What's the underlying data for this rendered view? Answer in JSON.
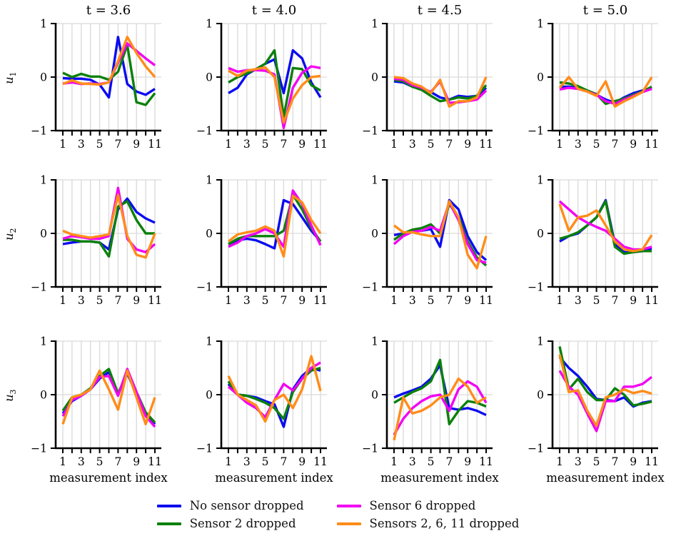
{
  "figure_colors": {
    "grid": "#d9d9d9",
    "spine": "#000000",
    "background": "#ffffff"
  },
  "legend": {
    "items": [
      {
        "label": "No sensor dropped",
        "color": "#0b0bf0"
      },
      {
        "label": "Sensor 2 dropped",
        "color": "#0b800b"
      },
      {
        "label": "Sensor 6 dropped",
        "color": "#f202f2"
      },
      {
        "label": "Sensors 2, 6, 11 dropped",
        "color": "#ff8c19"
      }
    ]
  },
  "chart_data": {
    "type": "line",
    "x": [
      1,
      2,
      3,
      4,
      5,
      6,
      7,
      8,
      9,
      10,
      11
    ],
    "xticks": [
      1,
      3,
      5,
      7,
      9,
      11
    ],
    "yticks": [
      1,
      0,
      -1
    ],
    "ylim": [
      -1,
      1
    ],
    "grid": true,
    "xlabel": "measurement index",
    "columns": [
      "t = 3.6",
      "t = 4.0",
      "t = 4.5",
      "t = 5.0"
    ],
    "rows": [
      {
        "label": "u",
        "sub": "1"
      },
      {
        "label": "u",
        "sub": "2"
      },
      {
        "label": "u",
        "sub": "3"
      }
    ],
    "series_meta": [
      {
        "name": "No sensor dropped",
        "color": "#0b0bf0"
      },
      {
        "name": "Sensor 2 dropped",
        "color": "#0b800b"
      },
      {
        "name": "Sensor 6 dropped",
        "color": "#f202f2"
      },
      {
        "name": "Sensors 2, 6, 11 dropped",
        "color": "#ff8c19"
      }
    ],
    "subplots": [
      {
        "row": "u1",
        "col": "t = 3.6",
        "values": [
          [
            -0.02,
            -0.03,
            -0.03,
            -0.05,
            -0.14,
            -0.38,
            0.75,
            -0.13,
            -0.27,
            -0.33,
            -0.22
          ],
          [
            0.08,
            0.0,
            0.06,
            0.01,
            0.01,
            -0.05,
            0.1,
            0.6,
            -0.47,
            -0.52,
            -0.3
          ],
          [
            -0.12,
            -0.1,
            -0.13,
            -0.12,
            -0.13,
            -0.1,
            0.27,
            0.63,
            0.49,
            0.35,
            0.22
          ],
          [
            -0.13,
            -0.06,
            -0.12,
            -0.13,
            -0.14,
            -0.1,
            0.3,
            0.75,
            0.45,
            0.2,
            0.0
          ]
        ]
      },
      {
        "row": "u1",
        "col": "t = 4.0",
        "values": [
          [
            -0.3,
            -0.2,
            0.05,
            0.15,
            0.25,
            0.33,
            -0.3,
            0.5,
            0.35,
            -0.1,
            -0.38
          ],
          [
            -0.1,
            0.0,
            0.07,
            0.15,
            0.25,
            0.5,
            -0.75,
            0.17,
            0.15,
            -0.15,
            -0.25
          ],
          [
            0.17,
            0.1,
            0.13,
            0.13,
            0.12,
            0.05,
            -0.95,
            -0.2,
            0.08,
            0.2,
            0.17
          ],
          [
            0.12,
            0.02,
            0.12,
            0.15,
            0.18,
            0.0,
            -0.85,
            -0.4,
            -0.15,
            0.0,
            0.02
          ]
        ]
      },
      {
        "row": "u1",
        "col": "t = 4.5",
        "values": [
          [
            -0.08,
            -0.1,
            -0.18,
            -0.22,
            -0.28,
            -0.38,
            -0.42,
            -0.35,
            -0.37,
            -0.35,
            -0.2
          ],
          [
            -0.05,
            -0.08,
            -0.18,
            -0.24,
            -0.35,
            -0.45,
            -0.42,
            -0.38,
            -0.4,
            -0.35,
            -0.15
          ],
          [
            -0.03,
            -0.05,
            -0.15,
            -0.2,
            -0.28,
            -0.08,
            -0.48,
            -0.47,
            -0.45,
            -0.42,
            -0.25
          ],
          [
            0.0,
            -0.02,
            -0.12,
            -0.18,
            -0.3,
            -0.05,
            -0.55,
            -0.45,
            -0.45,
            -0.38,
            0.0
          ]
        ]
      },
      {
        "row": "u1",
        "col": "t = 5.0",
        "values": [
          [
            -0.18,
            -0.18,
            -0.2,
            -0.25,
            -0.33,
            -0.42,
            -0.48,
            -0.38,
            -0.3,
            -0.25,
            -0.2
          ],
          [
            -0.1,
            -0.12,
            -0.17,
            -0.25,
            -0.32,
            -0.5,
            -0.45,
            -0.4,
            -0.33,
            -0.27,
            -0.18
          ],
          [
            -0.23,
            -0.2,
            -0.22,
            -0.27,
            -0.33,
            -0.45,
            -0.5,
            -0.42,
            -0.35,
            -0.28,
            -0.22
          ],
          [
            -0.2,
            0.0,
            -0.22,
            -0.27,
            -0.35,
            -0.08,
            -0.55,
            -0.45,
            -0.37,
            -0.28,
            0.0
          ]
        ]
      },
      {
        "row": "u2",
        "col": "t = 3.6",
        "values": [
          [
            -0.2,
            -0.17,
            -0.15,
            -0.15,
            -0.17,
            -0.3,
            0.45,
            0.65,
            0.4,
            0.28,
            0.2
          ],
          [
            -0.12,
            -0.12,
            -0.15,
            -0.15,
            -0.17,
            -0.43,
            0.5,
            0.6,
            0.25,
            0.0,
            0.0
          ],
          [
            -0.1,
            -0.05,
            -0.07,
            -0.1,
            -0.1,
            -0.05,
            0.85,
            -0.1,
            -0.3,
            -0.35,
            -0.2
          ],
          [
            0.05,
            -0.02,
            -0.05,
            -0.08,
            -0.05,
            -0.02,
            0.72,
            -0.05,
            -0.4,
            -0.45,
            0.0
          ]
        ]
      },
      {
        "row": "u2",
        "col": "t = 4.0",
        "values": [
          [
            -0.2,
            -0.13,
            -0.1,
            -0.13,
            -0.2,
            -0.28,
            0.62,
            0.55,
            0.3,
            0.05,
            -0.15
          ],
          [
            -0.2,
            -0.1,
            -0.05,
            -0.05,
            -0.05,
            -0.05,
            0.05,
            0.72,
            0.45,
            0.1,
            -0.15
          ],
          [
            -0.25,
            -0.17,
            -0.05,
            0.0,
            0.08,
            0.0,
            -0.25,
            0.8,
            0.55,
            0.15,
            -0.22
          ],
          [
            -0.15,
            -0.02,
            0.02,
            0.05,
            0.13,
            0.05,
            -0.43,
            0.7,
            0.58,
            0.25,
            0.0
          ]
        ]
      },
      {
        "row": "u2",
        "col": "t = 4.5",
        "values": [
          [
            -0.03,
            0.0,
            0.05,
            0.05,
            0.08,
            -0.25,
            0.62,
            0.45,
            -0.05,
            -0.35,
            -0.5
          ],
          [
            -0.12,
            0.0,
            0.07,
            0.1,
            0.17,
            0.0,
            0.55,
            0.3,
            -0.15,
            -0.45,
            -0.6
          ],
          [
            -0.2,
            -0.05,
            0.03,
            0.05,
            0.12,
            0.05,
            0.58,
            0.25,
            -0.2,
            -0.5,
            -0.55
          ],
          [
            0.15,
            0.02,
            0.02,
            -0.02,
            -0.05,
            -0.05,
            0.6,
            0.3,
            -0.4,
            -0.65,
            -0.05
          ]
        ]
      },
      {
        "row": "u2",
        "col": "t = 5.0",
        "values": [
          [
            -0.15,
            -0.05,
            0.0,
            0.15,
            0.3,
            0.62,
            -0.2,
            -0.35,
            -0.35,
            -0.33,
            -0.28
          ],
          [
            -0.1,
            -0.05,
            0.02,
            0.15,
            0.3,
            0.6,
            -0.25,
            -0.38,
            -0.35,
            -0.33,
            -0.33
          ],
          [
            0.6,
            0.45,
            0.3,
            0.2,
            0.12,
            0.05,
            -0.1,
            -0.25,
            -0.3,
            -0.3,
            -0.25
          ],
          [
            0.55,
            0.05,
            0.3,
            0.33,
            0.43,
            0.15,
            -0.15,
            -0.3,
            -0.33,
            -0.3,
            -0.03
          ]
        ]
      },
      {
        "row": "u3",
        "col": "t = 3.6",
        "values": [
          [
            -0.35,
            -0.12,
            -0.02,
            0.1,
            0.3,
            0.42,
            0.0,
            0.4,
            0.0,
            -0.35,
            -0.55
          ],
          [
            -0.3,
            -0.05,
            0.0,
            0.12,
            0.35,
            0.48,
            0.02,
            0.42,
            0.05,
            -0.33,
            -0.52
          ],
          [
            -0.4,
            -0.1,
            -0.02,
            0.1,
            0.33,
            0.35,
            -0.02,
            0.48,
            0.05,
            -0.4,
            -0.6
          ],
          [
            -0.55,
            -0.05,
            0.0,
            0.1,
            0.45,
            0.1,
            -0.28,
            0.45,
            -0.05,
            -0.55,
            -0.05
          ]
        ]
      },
      {
        "row": "u3",
        "col": "t = 4.0",
        "values": [
          [
            0.2,
            0.0,
            -0.02,
            -0.05,
            -0.12,
            -0.18,
            -0.6,
            0.1,
            0.35,
            0.5,
            0.45
          ],
          [
            0.25,
            0.0,
            -0.02,
            -0.08,
            -0.15,
            -0.25,
            -0.45,
            0.05,
            0.3,
            0.45,
            0.5
          ],
          [
            0.15,
            0.0,
            -0.15,
            -0.25,
            -0.42,
            -0.1,
            0.2,
            0.08,
            0.3,
            0.5,
            0.6
          ],
          [
            0.35,
            0.0,
            -0.1,
            -0.2,
            -0.5,
            -0.1,
            0.0,
            -0.25,
            0.1,
            0.72,
            0.07
          ]
        ]
      },
      {
        "row": "u3",
        "col": "t = 4.5",
        "values": [
          [
            -0.05,
            0.02,
            0.08,
            0.15,
            0.3,
            0.55,
            -0.25,
            -0.28,
            -0.25,
            -0.3,
            -0.38
          ],
          [
            -0.15,
            -0.05,
            0.05,
            0.12,
            0.25,
            0.65,
            -0.55,
            -0.3,
            -0.12,
            -0.15,
            -0.22
          ],
          [
            -0.75,
            -0.45,
            -0.25,
            -0.12,
            -0.03,
            0.0,
            -0.3,
            0.1,
            0.25,
            0.15,
            -0.15
          ],
          [
            -0.85,
            -0.05,
            -0.35,
            -0.3,
            -0.2,
            -0.05,
            0.0,
            0.3,
            0.15,
            -0.15,
            -0.05
          ]
        ]
      },
      {
        "row": "u3",
        "col": "t = 5.0",
        "values": [
          [
            0.7,
            0.5,
            0.35,
            0.15,
            -0.08,
            -0.1,
            -0.12,
            -0.05,
            -0.22,
            -0.15,
            -0.12
          ],
          [
            0.9,
            0.1,
            0.3,
            0.05,
            -0.1,
            -0.1,
            0.12,
            0.0,
            -0.2,
            -0.17,
            -0.13
          ],
          [
            0.45,
            0.15,
            0.0,
            -0.35,
            -0.68,
            -0.12,
            -0.12,
            0.15,
            0.15,
            0.2,
            0.33
          ],
          [
            0.75,
            0.05,
            0.08,
            -0.3,
            -0.58,
            -0.05,
            0.0,
            0.1,
            0.03,
            0.07,
            0.02
          ]
        ]
      }
    ]
  }
}
